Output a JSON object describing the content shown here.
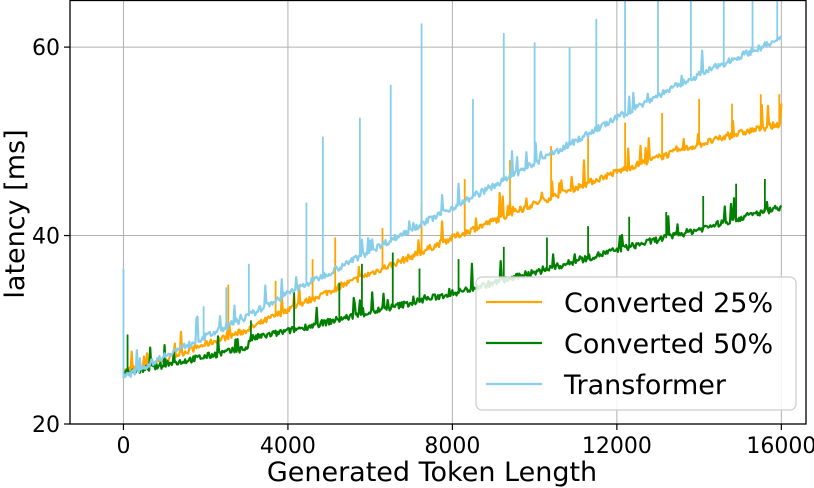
{
  "chart_data": {
    "type": "line",
    "title": "",
    "xlabel": "Generated Token Length",
    "ylabel": "latency [ms]",
    "xlim": [
      -1300,
      16600
    ],
    "ylim": [
      20,
      65
    ],
    "xticks": [
      0,
      4000,
      8000,
      12000,
      16000
    ],
    "yticks": [
      20,
      40,
      60
    ],
    "grid": true,
    "legend_position": "bottom-right",
    "series": [
      {
        "name": "Transformer",
        "color": "#87ceeb",
        "x": [
          0,
          1000,
          2000,
          3000,
          4000,
          5000,
          6000,
          7000,
          8000,
          9000,
          10000,
          11000,
          12000,
          13000,
          14000,
          15000,
          16000
        ],
        "y": [
          24.8,
          27.2,
          29.2,
          31.3,
          33.8,
          36.0,
          38.3,
          40.6,
          42.9,
          45.2,
          47.6,
          50.0,
          52.4,
          54.8,
          57.0,
          59.0,
          60.8
        ],
        "spikes": [
          {
            "x": 0,
            "y": 36.5
          },
          {
            "x": 1950,
            "y": 32.5
          },
          {
            "x": 2500,
            "y": 34.5
          },
          {
            "x": 3050,
            "y": 37.0
          },
          {
            "x": 4450,
            "y": 43.5
          },
          {
            "x": 4850,
            "y": 50.5
          },
          {
            "x": 5750,
            "y": 52.5
          },
          {
            "x": 6500,
            "y": 56.0
          },
          {
            "x": 7250,
            "y": 62.5
          },
          {
            "x": 8500,
            "y": 54.5
          },
          {
            "x": 9250,
            "y": 61.5
          },
          {
            "x": 10000,
            "y": 60.5
          },
          {
            "x": 10850,
            "y": 60.0
          },
          {
            "x": 11500,
            "y": 63.0
          },
          {
            "x": 12200,
            "y": 65.0
          },
          {
            "x": 13000,
            "y": 65.0
          },
          {
            "x": 13800,
            "y": 65.0
          },
          {
            "x": 14600,
            "y": 65.0
          },
          {
            "x": 15300,
            "y": 65.0
          },
          {
            "x": 15900,
            "y": 65.0
          }
        ]
      },
      {
        "name": "Converted 25%",
        "color": "#ffa500",
        "x": [
          0,
          1000,
          2000,
          3000,
          4000,
          5000,
          6000,
          7000,
          8000,
          9000,
          10000,
          11000,
          12000,
          13000,
          14000,
          15000,
          16000
        ],
        "y": [
          25.5,
          26.8,
          28.4,
          29.9,
          32.1,
          34.0,
          35.9,
          37.7,
          39.7,
          41.5,
          43.3,
          45.0,
          46.7,
          48.2,
          49.6,
          50.8,
          51.8
        ],
        "spikes": [
          {
            "x": 2550,
            "y": 34.8
          },
          {
            "x": 3700,
            "y": 35.2
          },
          {
            "x": 4600,
            "y": 37.5
          },
          {
            "x": 5150,
            "y": 39.8
          },
          {
            "x": 6300,
            "y": 40.8
          },
          {
            "x": 7250,
            "y": 43.5
          },
          {
            "x": 8300,
            "y": 46.0
          },
          {
            "x": 9400,
            "y": 48.0
          },
          {
            "x": 10400,
            "y": 49.5
          },
          {
            "x": 11300,
            "y": 50.5
          },
          {
            "x": 12200,
            "y": 52.0
          },
          {
            "x": 13100,
            "y": 53.0
          },
          {
            "x": 14000,
            "y": 54.5
          },
          {
            "x": 14800,
            "y": 54.0
          },
          {
            "x": 15500,
            "y": 55.0
          },
          {
            "x": 15950,
            "y": 55.0
          }
        ]
      },
      {
        "name": "Converted 50%",
        "color": "#008000",
        "x": [
          0,
          1000,
          2000,
          3000,
          3100,
          4000,
          5000,
          6000,
          7000,
          8000,
          9000,
          10000,
          11000,
          12000,
          13000,
          14000,
          15000,
          16000
        ],
        "y": [
          25.3,
          26.2,
          27.1,
          28.0,
          29.0,
          29.8,
          30.8,
          31.8,
          32.8,
          33.8,
          34.9,
          36.0,
          37.2,
          38.4,
          39.5,
          40.6,
          41.8,
          43.0
        ],
        "spikes": [
          {
            "x": 100,
            "y": 29.5
          },
          {
            "x": 3100,
            "y": 31.0
          },
          {
            "x": 4150,
            "y": 34.0
          },
          {
            "x": 5250,
            "y": 35.0
          },
          {
            "x": 5800,
            "y": 37.0
          },
          {
            "x": 6550,
            "y": 38.2
          },
          {
            "x": 7200,
            "y": 36.5
          },
          {
            "x": 8150,
            "y": 37.5
          },
          {
            "x": 9250,
            "y": 38.8
          },
          {
            "x": 10300,
            "y": 39.8
          },
          {
            "x": 11300,
            "y": 41.0
          },
          {
            "x": 12300,
            "y": 42.0
          },
          {
            "x": 13200,
            "y": 42.5
          },
          {
            "x": 14100,
            "y": 44.2
          },
          {
            "x": 14900,
            "y": 45.5
          },
          {
            "x": 15600,
            "y": 46.0
          }
        ]
      }
    ],
    "legend": [
      "Converted 25%",
      "Converted 50%",
      "Transformer"
    ]
  }
}
